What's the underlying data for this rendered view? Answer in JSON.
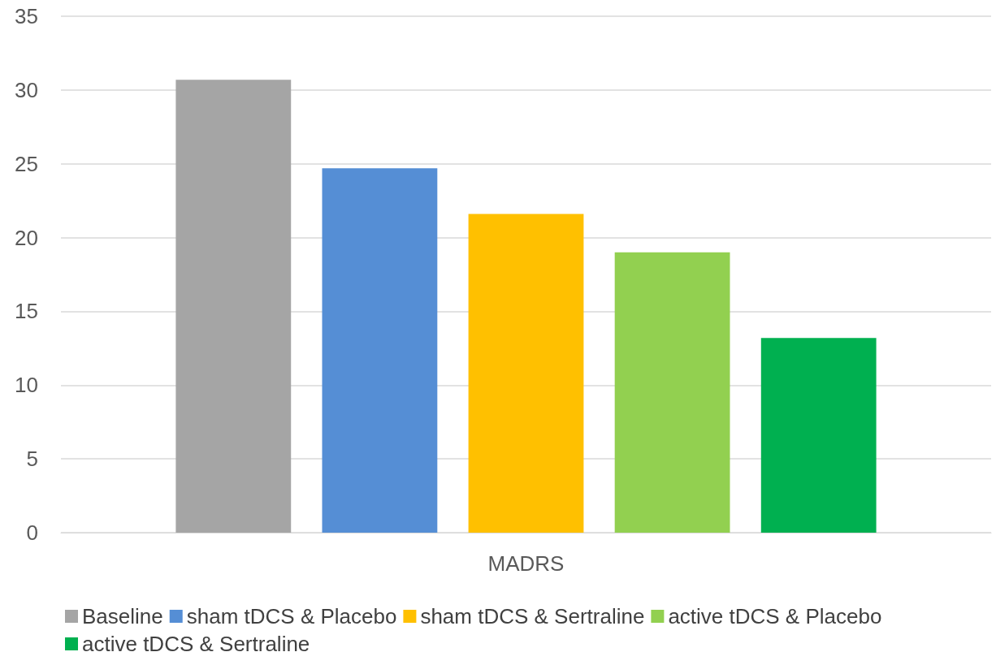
{
  "chart_data": {
    "type": "bar",
    "categories": [
      "MADRS"
    ],
    "series": [
      {
        "name": "Baseline",
        "color": "#a5a5a5",
        "values": [
          30.7
        ]
      },
      {
        "name": "sham tDCS & Placebo",
        "color": "#558ed5",
        "values": [
          24.7
        ]
      },
      {
        "name": "sham tDCS & Sertraline",
        "color": "#ffc000",
        "values": [
          21.6
        ]
      },
      {
        "name": "active tDCS & Placebo",
        "color": "#92d050",
        "values": [
          19.0
        ]
      },
      {
        "name": "active tDCS & Sertraline",
        "color": "#00b050",
        "values": [
          13.2
        ]
      }
    ],
    "ylim": [
      0,
      35
    ],
    "yticks": [
      0,
      5,
      10,
      15,
      20,
      25,
      30,
      35
    ],
    "grid": "y",
    "legend": "bottom"
  }
}
